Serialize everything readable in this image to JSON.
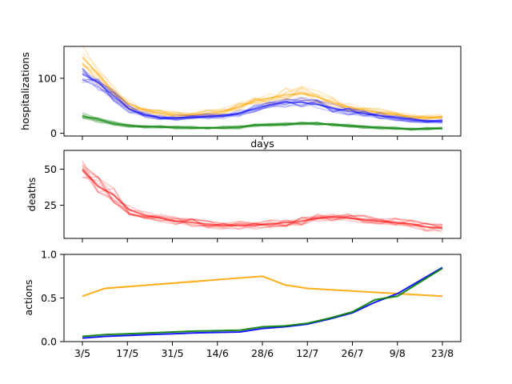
{
  "chart_data": [
    {
      "type": "line",
      "ylabel": "hospitalizations",
      "xlabel": "days",
      "ylim": [
        -5,
        158
      ],
      "yticks": [
        0,
        100
      ],
      "ensemble": true,
      "series": [
        {
          "name": "",
          "color": "#ffa500",
          "values": [
            138,
            108,
            75,
            52,
            42,
            36,
            34,
            33,
            36,
            40,
            48,
            58,
            64,
            70,
            72,
            66,
            56,
            48,
            42,
            38,
            34,
            30,
            28,
            30
          ]
        },
        {
          "name": "",
          "color": "#0000ff",
          "values": [
            108,
            92,
            68,
            44,
            34,
            28,
            28,
            29,
            30,
            32,
            36,
            44,
            52,
            56,
            56,
            52,
            46,
            40,
            36,
            32,
            28,
            24,
            22,
            22
          ]
        },
        {
          "name": "",
          "color": "#008000",
          "values": [
            32,
            24,
            18,
            14,
            12,
            11,
            10,
            10,
            10,
            10,
            11,
            14,
            16,
            17,
            18,
            18,
            16,
            14,
            12,
            10,
            9,
            8,
            8,
            9
          ]
        }
      ]
    },
    {
      "type": "line",
      "ylabel": "deaths",
      "ylim": [
        2,
        63
      ],
      "yticks": [
        25,
        50
      ],
      "ensemble": true,
      "series": [
        {
          "name": "",
          "color": "#ff0000",
          "values": [
            50,
            38,
            32,
            22,
            18,
            16,
            14,
            13,
            12,
            11,
            11,
            11,
            12,
            13,
            14,
            16,
            17,
            16,
            15,
            14,
            13,
            12,
            10,
            9
          ]
        }
      ]
    },
    {
      "type": "line",
      "ylabel": "actions",
      "ylim": [
        0,
        1
      ],
      "yticks": [
        0.0,
        0.5,
        1.0
      ],
      "x": [
        "3/5",
        "10/5",
        "28/6",
        "5/7",
        "12/7",
        "23/8"
      ],
      "xticks": [
        "3/5",
        "17/5",
        "31/5",
        "14/6",
        "28/6",
        "12/7",
        "26/7",
        "9/8",
        "23/8"
      ],
      "series": [
        {
          "name": "",
          "color": "#ffa500",
          "values": [
            0.52,
            0.61,
            0.75,
            0.65,
            0.61,
            0.52
          ],
          "x": [
            0,
            7,
            56,
            63,
            70,
            112
          ]
        },
        {
          "name": "",
          "color": "#0000ff",
          "values": [
            0.04,
            0.06,
            0.07,
            0.08,
            0.09,
            0.1,
            0.11,
            0.15,
            0.17,
            0.2,
            0.26,
            0.33,
            0.45,
            0.55,
            0.85
          ],
          "x": [
            0,
            7,
            14,
            21,
            28,
            35,
            49,
            56,
            63,
            70,
            77,
            84,
            91,
            98,
            112
          ]
        },
        {
          "name": "",
          "color": "#008000",
          "values": [
            0.06,
            0.08,
            0.09,
            0.1,
            0.11,
            0.12,
            0.13,
            0.17,
            0.18,
            0.21,
            0.27,
            0.34,
            0.48,
            0.52,
            0.84
          ],
          "x": [
            0,
            7,
            14,
            21,
            28,
            35,
            49,
            56,
            63,
            70,
            77,
            84,
            91,
            98,
            112
          ]
        }
      ]
    }
  ]
}
